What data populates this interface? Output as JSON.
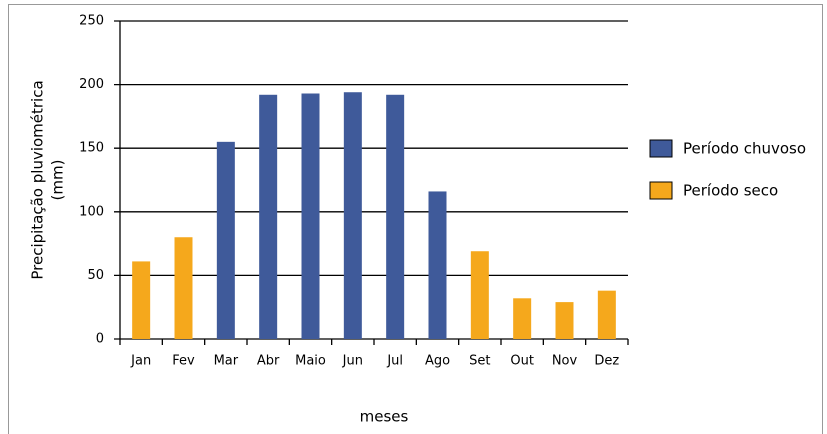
{
  "chart_data": {
    "type": "bar",
    "ylabel": [
      "Precipitação pluviométrica",
      "(mm)"
    ],
    "xlabel": "meses",
    "categories": [
      "Jan",
      "Fev",
      "Mar",
      "Abr",
      "Maio",
      "Jun",
      "Jul",
      "Ago",
      "Set",
      "Out",
      "Nov",
      "Dez"
    ],
    "series": [
      {
        "name": "Período chuvoso",
        "color": "#3f5a9a",
        "values": [
          null,
          null,
          155,
          192,
          193,
          194,
          192,
          116,
          null,
          null,
          null,
          null
        ]
      },
      {
        "name": "Período seco",
        "color": "#f5a81c",
        "values": [
          61,
          80,
          null,
          null,
          null,
          null,
          null,
          null,
          69,
          32,
          29,
          38
        ]
      }
    ],
    "ylim": [
      0,
      250
    ],
    "yticks": [
      0,
      50,
      100,
      150,
      200,
      250
    ],
    "grid": true,
    "legend": "right"
  }
}
